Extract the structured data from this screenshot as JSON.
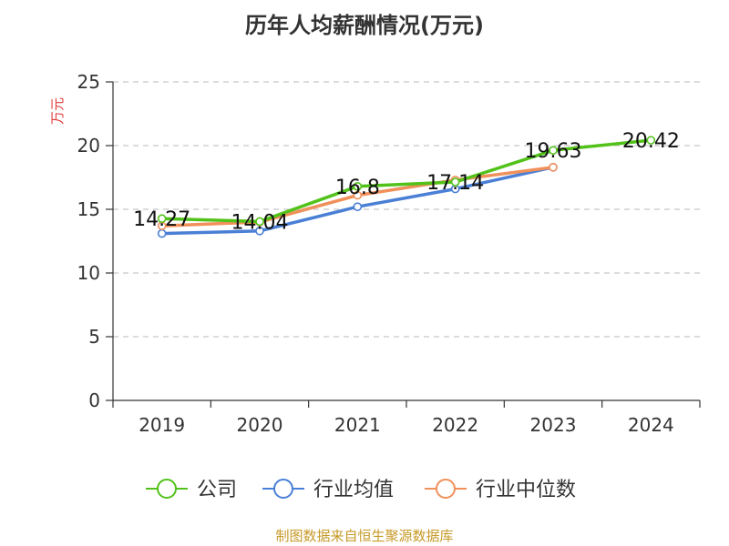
{
  "colors": {
    "company": "#52c21a",
    "industry_avg": "#4a7fd6",
    "industry_median": "#f0905a",
    "axis": "#333333",
    "grid": "#c8c8c8",
    "ylabel": "#e23b3b",
    "footer": "#c79a28"
  },
  "footer": "制图数据来自恒生聚源数据库",
  "chart_data": {
    "type": "line",
    "title": "历年人均薪酬情况(万元)",
    "ylabel": "万元",
    "xlabel": "",
    "categories": [
      "2019",
      "2020",
      "2021",
      "2022",
      "2023",
      "2024"
    ],
    "ylim": [
      0,
      25
    ],
    "yticks": [
      "0",
      "5",
      "10",
      "15",
      "20",
      "25"
    ],
    "grid": true,
    "legend_position": "bottom",
    "series": [
      {
        "name": "公司",
        "values": [
          14.27,
          14.04,
          16.8,
          17.14,
          19.63,
          20.42
        ],
        "labels": [
          "14.27",
          "14.04",
          "16.8",
          "17.14",
          "19.63",
          "20.42"
        ]
      },
      {
        "name": "行业均值",
        "values": [
          13.1,
          13.3,
          15.2,
          16.6,
          18.3,
          null
        ]
      },
      {
        "name": "行业中位数",
        "values": [
          13.7,
          14.0,
          16.1,
          17.3,
          18.3,
          null
        ]
      }
    ]
  }
}
